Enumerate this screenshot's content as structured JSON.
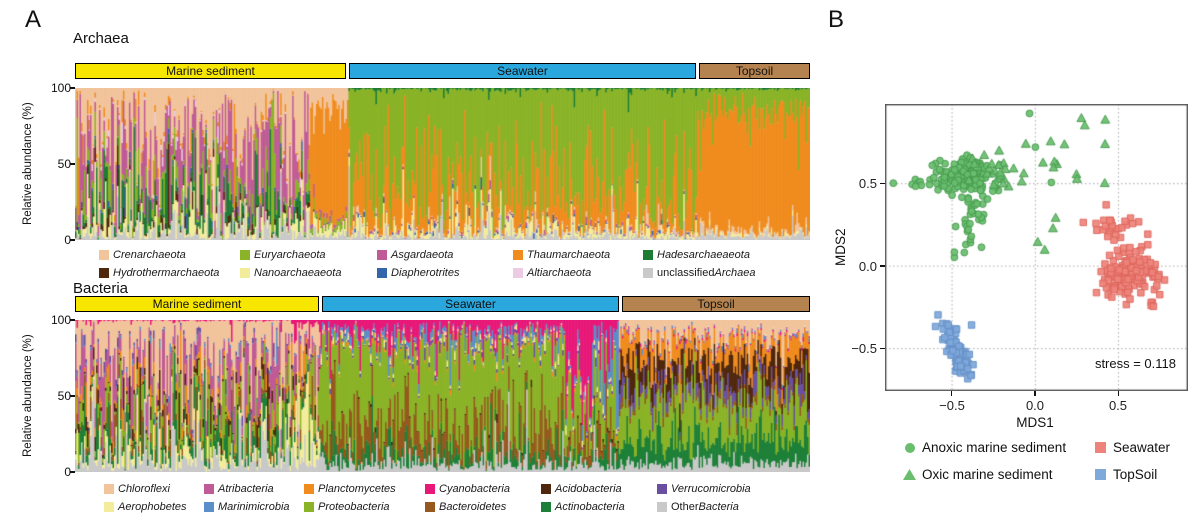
{
  "figure": {
    "panel_a_label": "A",
    "panel_b_label": "B"
  },
  "chart_data": [
    {
      "id": "archaea-composition",
      "type": "bar",
      "stacked": true,
      "title": "Archaea",
      "ylabel": "Relative abundance (%)",
      "ylim": [
        0,
        100
      ],
      "ytick_labels": [
        "100",
        "50",
        "0"
      ],
      "grid": false,
      "x_unit": "individual samples (one stacked bar per sample)",
      "taxa": [
        {
          "name": "Crenarchaeota",
          "color": "#f2c49c",
          "plain": "",
          "italic": "Crenarchaeota"
        },
        {
          "name": "Euryarchaeota",
          "color": "#8ab327",
          "plain": "",
          "italic": "Euryarchaeota"
        },
        {
          "name": "Asgardaeota",
          "color": "#bf5b96",
          "plain": "",
          "italic": "Asgardaeota"
        },
        {
          "name": "Thaumarchaeota",
          "color": "#f08c1e",
          "plain": "",
          "italic": "Thaumarchaeota"
        },
        {
          "name": "Hadesarchaeaeota",
          "color": "#1d7c34",
          "plain": "",
          "italic": "Hadesarchaeaeota"
        },
        {
          "name": "Hydrothermarchaeota",
          "color": "#4f270d",
          "plain": "",
          "italic": "Hydrothermarchaeota"
        },
        {
          "name": "Nanoarchaeaeota",
          "color": "#f3ec9b",
          "plain": "",
          "italic": "Nanoarchaeaeota"
        },
        {
          "name": "Diapherotrites",
          "color": "#3465ab",
          "plain": "",
          "italic": "Diapherotrites"
        },
        {
          "name": "Altiarchaeota",
          "color": "#eccbe3",
          "plain": "",
          "italic": "Altiarchaeota"
        },
        {
          "name": "unclassified Archaea",
          "color": "#c9c9c9",
          "plain": "unclassified ",
          "italic": "Archaea"
        }
      ],
      "groups": [
        {
          "label": "Marine sediment",
          "header_color": "#f7e600",
          "width_frac": 0.372,
          "segments": [
            {
              "frac": 0.86,
              "sigma": 1.25,
              "mean": [
                38,
                9,
                24,
                3.5,
                9,
                2.5,
                7,
                0.8,
                1.2,
                5
              ],
              "stack_order": [
                9,
                6,
                5,
                4,
                7,
                1,
                2,
                8,
                3,
                0
              ]
            },
            {
              "frac": 0.14,
              "sigma": 0.5,
              "mean": [
                14,
                3,
                2,
                74,
                0.5,
                0,
                4,
                0,
                0,
                2.5
              ],
              "stack_order": [
                9,
                6,
                5,
                4,
                7,
                1,
                2,
                8,
                3,
                0
              ]
            }
          ]
        },
        {
          "label": "Seawater",
          "header_color": "#2aa7dc",
          "width_frac": 0.474,
          "segments": [
            {
              "frac": 1.0,
              "sigma": 1.0,
              "mean": [
                1,
                70,
                0.5,
                21,
                0.8,
                0,
                4,
                0.5,
                0,
                2
              ],
              "stack_order": [
                9,
                6,
                8,
                5,
                7,
                2,
                0,
                3,
                1,
                4
              ]
            }
          ]
        },
        {
          "label": "Topsoil",
          "header_color": "#b5834f",
          "width_frac": 0.154,
          "segments": [
            {
              "frac": 1.0,
              "sigma": 0.55,
              "mean": [
                1.5,
                16,
                0,
                78,
                0.5,
                0,
                1,
                0,
                0,
                3
              ],
              "stack_order": [
                9,
                5,
                8,
                7,
                2,
                6,
                0,
                3,
                1,
                4
              ]
            }
          ]
        }
      ],
      "legend_layout": {
        "per_row": 5,
        "columns": [
          99,
          240,
          377,
          513,
          643
        ],
        "rows": [
          249,
          267
        ]
      }
    },
    {
      "id": "bacteria-composition",
      "type": "bar",
      "stacked": true,
      "title": "Bacteria",
      "ylabel": "Relative abundance (%)",
      "ylim": [
        0,
        100
      ],
      "ytick_labels": [
        "100",
        "50",
        "0"
      ],
      "grid": false,
      "x_unit": "individual samples (one stacked bar per sample)",
      "taxa": [
        {
          "name": "Chloroflexi",
          "color": "#f2c49c",
          "plain": "",
          "italic": "Chloroflexi"
        },
        {
          "name": "Atribacteria",
          "color": "#bf5b96",
          "plain": "",
          "italic": "Atribacteria"
        },
        {
          "name": "Planctomycetes",
          "color": "#f08c1e",
          "plain": "",
          "italic": "Planctomycetes"
        },
        {
          "name": "Cyanobacteria",
          "color": "#e81878",
          "plain": "",
          "italic": "Cyanobacteria"
        },
        {
          "name": "Acidobacteria",
          "color": "#4f270d",
          "plain": "",
          "italic": "Acidobacteria"
        },
        {
          "name": "Verrucomicrobia",
          "color": "#6a4fa0",
          "plain": "",
          "italic": "Verrucomicrobia"
        },
        {
          "name": "Aerophobetes",
          "color": "#f3ec9b",
          "plain": "",
          "italic": "Aerophobetes"
        },
        {
          "name": "Marinimicrobia",
          "color": "#5b8fc9",
          "plain": "",
          "italic": "Marinimicrobia"
        },
        {
          "name": "Proteobacteria",
          "color": "#8ab327",
          "plain": "",
          "italic": "Proteobacteria"
        },
        {
          "name": "Bacteroidetes",
          "color": "#96581c",
          "plain": "",
          "italic": "Bacteroidetes"
        },
        {
          "name": "Actinobacteria",
          "color": "#1e8038",
          "plain": "",
          "italic": "Actinobacteria"
        },
        {
          "name": "Other Bacteria",
          "color": "#c9c9c9",
          "plain": "Other ",
          "italic": "Bacteria"
        }
      ],
      "groups": [
        {
          "label": "Marine sediment",
          "header_color": "#f7e600",
          "width_frac": 0.334,
          "segments": [
            {
              "frac": 0.88,
              "sigma": 1.2,
              "mean": [
                27,
                20,
                5,
                0.6,
                4,
                1.5,
                7,
                1,
                11,
                4,
                8,
                11
              ],
              "stack_order": [
                11,
                6,
                10,
                9,
                8,
                4,
                2,
                1,
                7,
                5,
                0,
                3
              ]
            },
            {
              "frac": 0.12,
              "sigma": 1.0,
              "mean": [
                20,
                8,
                6,
                5,
                3,
                1,
                25,
                1,
                12,
                4,
                7,
                8
              ],
              "stack_order": [
                11,
                6,
                10,
                9,
                8,
                4,
                2,
                1,
                7,
                5,
                0,
                3
              ]
            }
          ]
        },
        {
          "label": "Seawater",
          "header_color": "#2aa7dc",
          "width_frac": 0.406,
          "segments": [
            {
              "frac": 0.82,
              "sigma": 0.8,
              "mean": [
                0.6,
                0,
                1,
                8,
                0.5,
                1.5,
                1,
                3.5,
                55,
                17,
                6,
                5.5
              ],
              "stack_order": [
                11,
                10,
                9,
                4,
                8,
                2,
                5,
                1,
                6,
                0,
                7,
                3
              ]
            },
            {
              "frac": 0.09,
              "sigma": 0.9,
              "mean": [
                1,
                0,
                1,
                42,
                0.5,
                2,
                2,
                5,
                30,
                9,
                3,
                4.5
              ],
              "stack_order": [
                11,
                10,
                9,
                4,
                8,
                2,
                5,
                1,
                6,
                0,
                7,
                3
              ]
            },
            {
              "frac": 0.09,
              "sigma": 0.9,
              "mean": [
                1,
                0.5,
                1,
                14,
                1,
                2,
                2,
                24,
                34,
                9,
                6,
                5.5
              ],
              "stack_order": [
                11,
                10,
                9,
                4,
                8,
                2,
                5,
                1,
                6,
                0,
                7,
                3
              ]
            }
          ]
        },
        {
          "label": "Topsoil",
          "header_color": "#b5834f",
          "width_frac": 0.26,
          "segments": [
            {
              "frac": 1.0,
              "sigma": 0.6,
              "mean": [
                11,
                0.5,
                12,
                1,
                14,
                8,
                0.5,
                1,
                26,
                3,
                17,
                6
              ],
              "stack_order": [
                11,
                10,
                8,
                9,
                5,
                4,
                2,
                3,
                7,
                1,
                6,
                0
              ]
            }
          ]
        }
      ],
      "legend_layout": {
        "per_row": 6,
        "columns": [
          104,
          204,
          304,
          425,
          541,
          657
        ],
        "rows": [
          483,
          501
        ]
      }
    },
    {
      "id": "nmds-ordination",
      "type": "scatter",
      "xlabel": "MDS1",
      "ylabel": "MDS2",
      "xlim": [
        -0.9,
        0.92
      ],
      "ylim": [
        -0.76,
        0.98
      ],
      "xticks": [
        -0.5,
        0.0,
        0.5
      ],
      "yticks": [
        0.5,
        0.0,
        -0.5
      ],
      "xtick_labels": [
        "−0.5",
        "0.0",
        "0.5"
      ],
      "ytick_labels": [
        "0.5",
        "0.0",
        "−0.5"
      ],
      "grid": "dotted",
      "annotation": "stress = 0.118",
      "legend_position": "below",
      "series": [
        {
          "name": "Anoxic marine sediment",
          "marker": "circle",
          "fill": "#69be6e",
          "stroke": "#44984c",
          "clusters": [
            {
              "n": 145,
              "cx": -0.42,
              "cy": 0.55,
              "sdx": 0.09,
              "sdy": 0.05,
              "corr": 0
            },
            {
              "n": 40,
              "cx": -0.38,
              "cy": 0.28,
              "sdx": 0.05,
              "sdy": 0.13,
              "corr": 0.2
            },
            {
              "n": 8,
              "cx": -0.68,
              "cy": 0.52,
              "sdx": 0.08,
              "sdy": 0.04,
              "corr": 0
            },
            {
              "n": 4,
              "cx": -0.05,
              "cy": 0.55,
              "sdx": 0.1,
              "sdy": 0.18,
              "corr": 0
            }
          ],
          "points": [
            [
              -0.85,
              0.5
            ]
          ]
        },
        {
          "name": "Oxic marine sediment",
          "marker": "triangle",
          "fill": "#69be6e",
          "stroke": "#44984c",
          "clusters": [
            {
              "n": 22,
              "cx": -0.25,
              "cy": 0.57,
              "sdx": 0.1,
              "sdy": 0.05,
              "corr": 0
            },
            {
              "n": 10,
              "cx": 0.18,
              "cy": 0.72,
              "sdx": 0.12,
              "sdy": 0.1,
              "corr": 0.5
            },
            {
              "n": 6,
              "cx": 0.1,
              "cy": 0.4,
              "sdx": 0.12,
              "sdy": 0.12,
              "corr": 0
            }
          ],
          "points": [
            [
              0.42,
              0.5
            ],
            [
              0.3,
              0.85
            ]
          ]
        },
        {
          "name": "Seawater",
          "marker": "square",
          "fill": "#ee837b",
          "stroke": "#dd665c",
          "clusters": [
            {
              "n": 135,
              "cx": 0.56,
              "cy": -0.05,
              "sdx": 0.08,
              "sdy": 0.07,
              "corr": 0.15
            },
            {
              "n": 26,
              "cx": 0.47,
              "cy": 0.25,
              "sdx": 0.08,
              "sdy": 0.05,
              "corr": 0
            },
            {
              "n": 5,
              "cx": 0.68,
              "cy": -0.2,
              "sdx": 0.05,
              "sdy": 0.06,
              "corr": 0
            }
          ],
          "points": []
        },
        {
          "name": "TopSoil",
          "marker": "square",
          "fill": "#7fa8db",
          "stroke": "#6590c7",
          "clusters": [
            {
              "n": 115,
              "cx": -0.46,
              "cy": -0.53,
              "sdx": 0.04,
              "sdy": 0.08,
              "corr": -0.8
            }
          ],
          "points": [
            [
              -0.52,
              -0.36
            ],
            [
              -0.38,
              -0.36
            ]
          ]
        }
      ]
    }
  ]
}
